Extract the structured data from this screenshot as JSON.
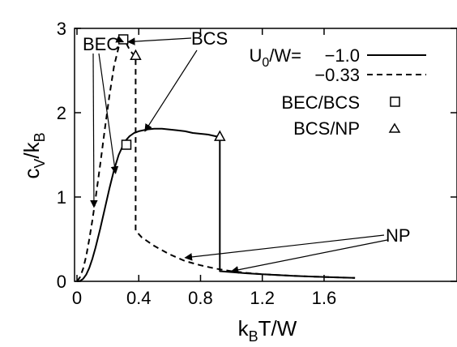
{
  "chart_data": {
    "type": "line",
    "xlabel": {
      "base": "k",
      "sub": "B",
      "rest": "T/W"
    },
    "ylabel": {
      "c": "c",
      "c_sub": "V",
      "sep": "/k",
      "k_sub": "B"
    },
    "xlim": [
      0,
      1.8
    ],
    "ylim": [
      0,
      3
    ],
    "x_ticks": [
      {
        "value": 0,
        "label": "0"
      },
      {
        "value": 0.4,
        "label": "0.4"
      },
      {
        "value": 0.8,
        "label": "0.8"
      },
      {
        "value": 1.2,
        "label": "1.2"
      },
      {
        "value": 1.6,
        "label": "1.6"
      }
    ],
    "y_ticks": [
      {
        "value": 0,
        "label": "0"
      },
      {
        "value": 1,
        "label": "1"
      },
      {
        "value": 2,
        "label": "2"
      },
      {
        "value": 3,
        "label": "3"
      }
    ],
    "grid": false,
    "legend_position": "top-right",
    "legend": {
      "title": {
        "u": "U",
        "u_sub": "0",
        "rest": "/W= "
      },
      "entries": [
        {
          "label": "−1.0",
          "style": "solid"
        },
        {
          "label": "−0.33",
          "style": "dashed"
        },
        {
          "label": "BEC/BCS",
          "marker": "square"
        },
        {
          "label": "BCS/NP",
          "marker": "triangle"
        }
      ]
    },
    "series": [
      {
        "style": "solid",
        "color": "#000000",
        "x": [
          0.0,
          0.02,
          0.04,
          0.06,
          0.08,
          0.1,
          0.12,
          0.15,
          0.18,
          0.21,
          0.24,
          0.27,
          0.3,
          0.32,
          0.34,
          0.37,
          0.4,
          0.45,
          0.5,
          0.55,
          0.6,
          0.65,
          0.7,
          0.75,
          0.8,
          0.85,
          0.9,
          0.925,
          0.925,
          1.0,
          1.1,
          1.2,
          1.3,
          1.4,
          1.5,
          1.6,
          1.7,
          1.8
        ],
        "y": [
          0.0,
          0.005,
          0.03,
          0.08,
          0.16,
          0.27,
          0.4,
          0.62,
          0.86,
          1.1,
          1.32,
          1.5,
          1.62,
          1.68,
          1.72,
          1.76,
          1.78,
          1.8,
          1.81,
          1.81,
          1.8,
          1.79,
          1.78,
          1.76,
          1.75,
          1.74,
          1.72,
          1.72,
          0.12,
          0.11,
          0.095,
          0.085,
          0.075,
          0.065,
          0.058,
          0.052,
          0.046,
          0.04
        ]
      },
      {
        "style": "dashed",
        "color": "#000000",
        "x": [
          0.0,
          0.02,
          0.04,
          0.06,
          0.08,
          0.1,
          0.12,
          0.15,
          0.18,
          0.21,
          0.24,
          0.27,
          0.3,
          0.32,
          0.34,
          0.36,
          0.38,
          0.38,
          0.42,
          0.5,
          0.6,
          0.7,
          0.8,
          0.9,
          1.0,
          1.1,
          1.2,
          1.3,
          1.4,
          1.5,
          1.6,
          1.7,
          1.8
        ],
        "y": [
          0.0,
          0.05,
          0.15,
          0.3,
          0.5,
          0.73,
          0.98,
          1.38,
          1.8,
          2.2,
          2.55,
          2.78,
          2.87,
          2.82,
          2.75,
          2.7,
          2.68,
          0.6,
          0.52,
          0.42,
          0.32,
          0.24,
          0.19,
          0.15,
          0.12,
          0.1,
          0.085,
          0.075,
          0.065,
          0.058,
          0.052,
          0.046,
          0.04
        ]
      }
    ],
    "markers": [
      {
        "type": "square",
        "x": 0.3,
        "y": 2.87
      },
      {
        "type": "square",
        "x": 0.32,
        "y": 1.62
      },
      {
        "type": "triangle",
        "x": 0.38,
        "y": 2.68
      },
      {
        "type": "triangle",
        "x": 0.925,
        "y": 1.72
      }
    ],
    "annotations": [
      {
        "text": "BEC",
        "arrows_to": [
          {
            "x": 0.11,
            "y": 0.88
          },
          {
            "x": 0.25,
            "y": 1.28
          },
          {
            "x": 0.3,
            "y": 2.84
          }
        ]
      },
      {
        "text": "BCS",
        "arrows_to": [
          {
            "x": 0.33,
            "y": 2.84
          },
          {
            "x": 0.44,
            "y": 1.78
          }
        ]
      },
      {
        "text": "NP",
        "arrows_to": [
          {
            "x": 0.7,
            "y": 0.28
          },
          {
            "x": 1.0,
            "y": 0.12
          }
        ]
      }
    ]
  }
}
